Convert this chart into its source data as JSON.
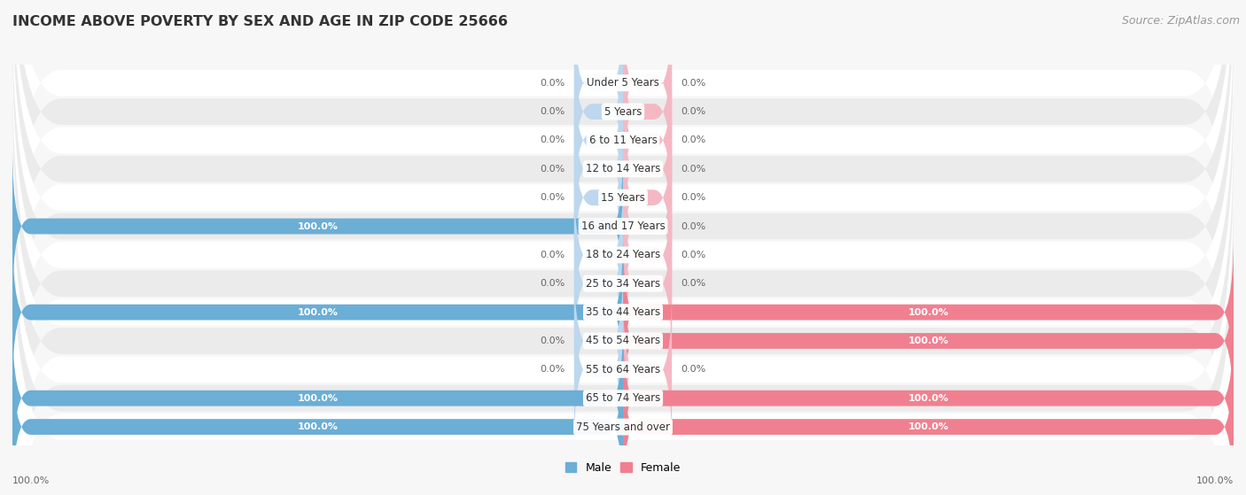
{
  "title": "INCOME ABOVE POVERTY BY SEX AND AGE IN ZIP CODE 25666",
  "source": "Source: ZipAtlas.com",
  "categories": [
    "Under 5 Years",
    "5 Years",
    "6 to 11 Years",
    "12 to 14 Years",
    "15 Years",
    "16 and 17 Years",
    "18 to 24 Years",
    "25 to 34 Years",
    "35 to 44 Years",
    "45 to 54 Years",
    "55 to 64 Years",
    "65 to 74 Years",
    "75 Years and over"
  ],
  "male_values": [
    0.0,
    0.0,
    0.0,
    0.0,
    0.0,
    100.0,
    0.0,
    0.0,
    100.0,
    0.0,
    0.0,
    100.0,
    100.0
  ],
  "female_values": [
    0.0,
    0.0,
    0.0,
    0.0,
    0.0,
    0.0,
    0.0,
    0.0,
    100.0,
    100.0,
    0.0,
    100.0,
    100.0
  ],
  "male_color": "#6BAED6",
  "female_color": "#F08090",
  "male_color_light": "#BDD7EE",
  "female_color_light": "#F4B8C4",
  "male_label": "Male",
  "female_label": "Female",
  "bg_color": "#f7f7f7",
  "row_bg_light": "#f0f0f0",
  "row_bg_dark": "#e4e4e4",
  "title_fontsize": 11.5,
  "source_fontsize": 9,
  "bar_label_fontsize": 8,
  "cat_label_fontsize": 8.5,
  "legend_fontsize": 9,
  "stub_size": 8.0
}
